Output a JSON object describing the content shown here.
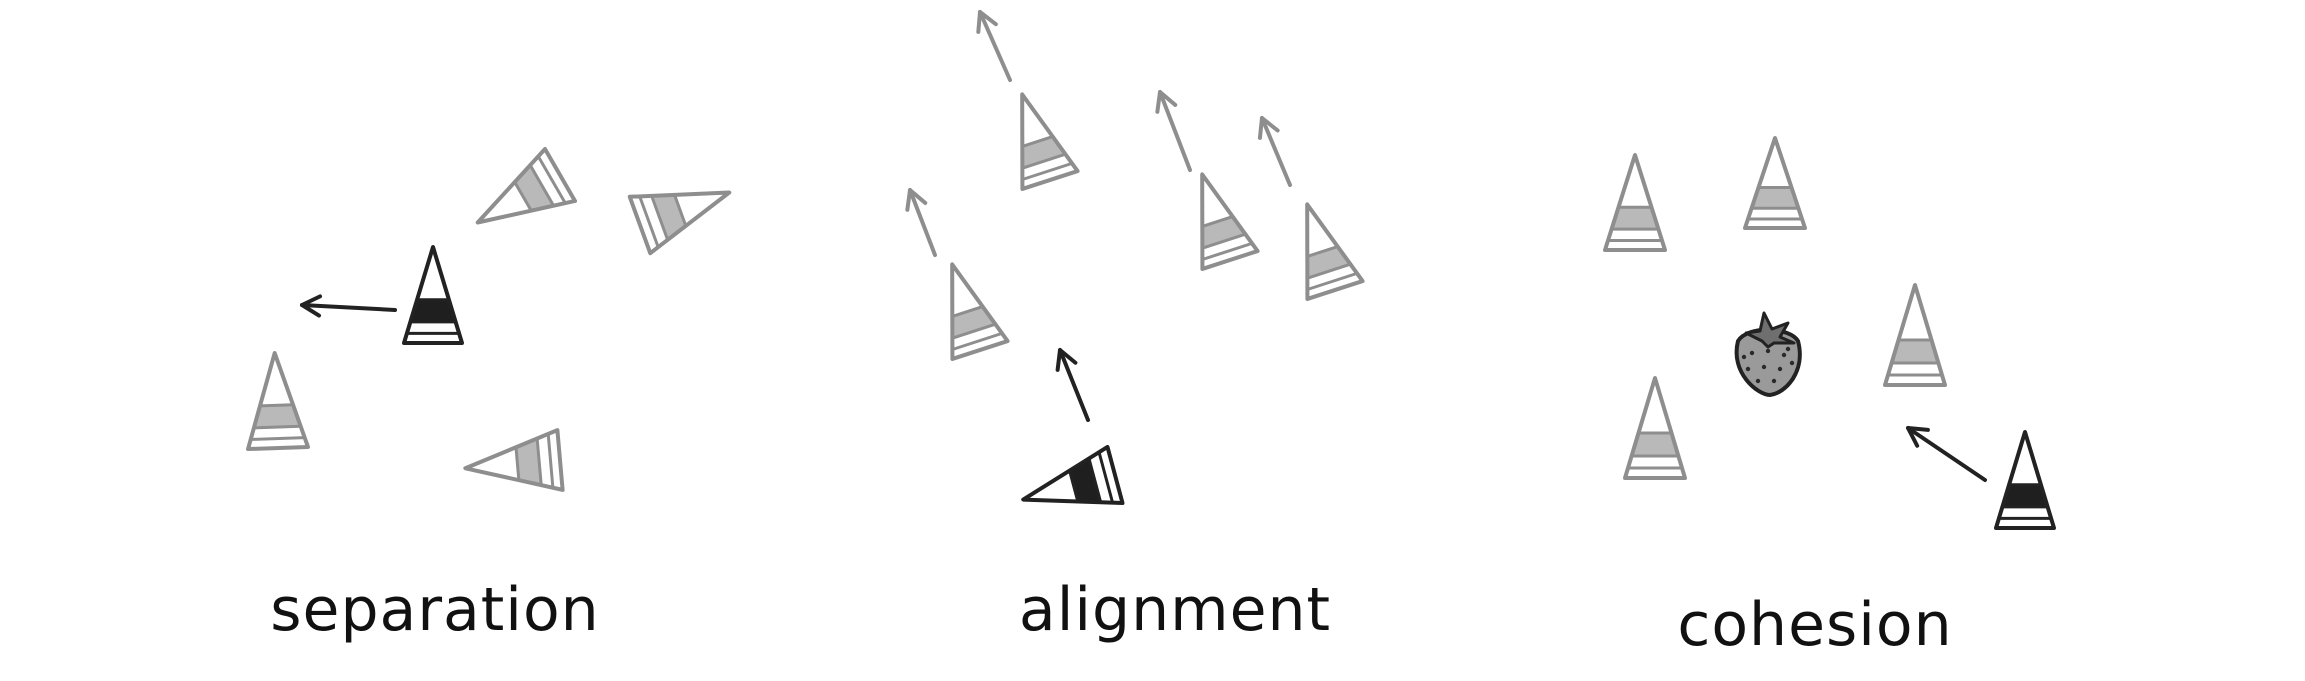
{
  "labels": {
    "separation": "separation",
    "alignment": "alignment",
    "cohesion": "cohesion"
  },
  "colors": {
    "ink": "#222222",
    "gray": "#8e8e8e",
    "gray_fill": "#b9b9b9",
    "dark_fill": "#1f1f1f"
  },
  "icons": {
    "agent": "triangle-boid-icon",
    "target": "strawberry-icon"
  }
}
